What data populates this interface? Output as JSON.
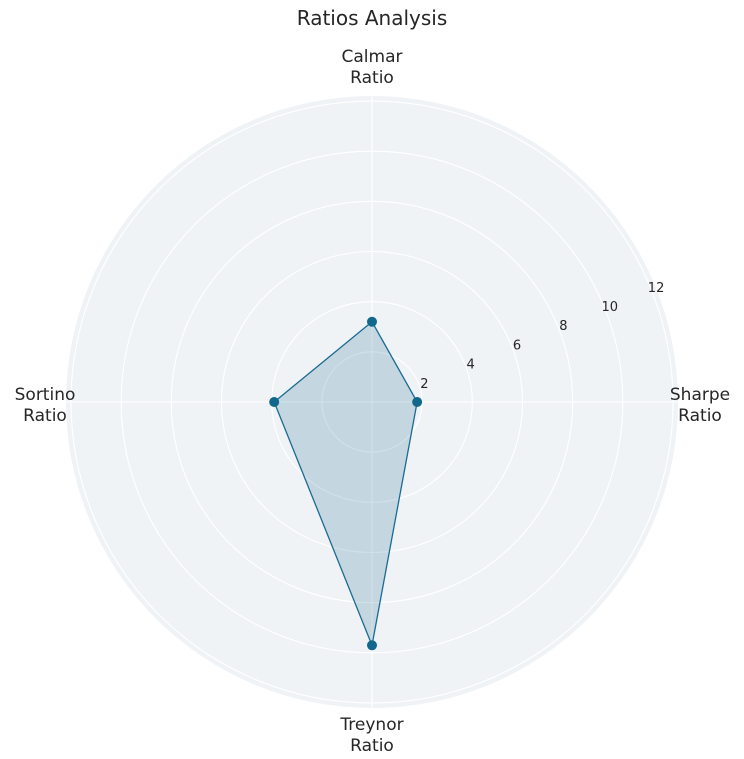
{
  "chart_data": {
    "type": "radar",
    "title": "Ratios Analysis",
    "axes": [
      {
        "line1": "Sharpe",
        "line2": "Ratio"
      },
      {
        "line1": "Calmar",
        "line2": "Ratio"
      },
      {
        "line1": "Sortino",
        "line2": "Ratio"
      },
      {
        "line1": "Treynor",
        "line2": "Ratio"
      }
    ],
    "series": [
      {
        "values": [
          1.8,
          3.2,
          3.9,
          9.7
        ]
      }
    ],
    "rlim": [
      0,
      12.2
    ],
    "rticks": [
      2,
      4,
      6,
      8,
      10,
      12
    ],
    "grid": true,
    "colors": {
      "line": "#1a6a93",
      "marker": "#12678c",
      "fill": "#1a6a93",
      "background": "#eff3f6",
      "grid": "#ffffff"
    }
  }
}
